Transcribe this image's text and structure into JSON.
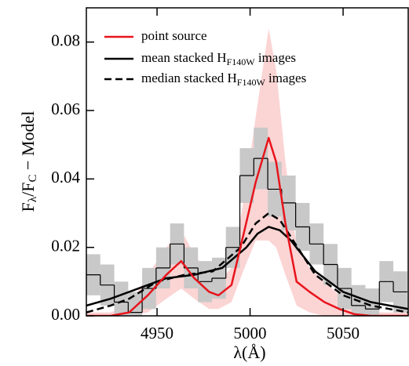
{
  "chart_data": {
    "type": "line",
    "xlim": [
      4912,
      5085
    ],
    "ylim": [
      0,
      0.09
    ],
    "xticks": [
      4950,
      5000,
      5050
    ],
    "yticks": [
      {
        "value": 0,
        "label": "0.00"
      },
      {
        "value": 0.02,
        "label": "0.02"
      },
      {
        "value": 0.04,
        "label": "0.04"
      },
      {
        "value": 0.06,
        "label": "0.06"
      },
      {
        "value": 0.08,
        "label": "0.08"
      }
    ],
    "x_label": [
      "λ(Å)"
    ],
    "y_label": [
      "F",
      "λ",
      "/F",
      "C",
      " − Model"
    ],
    "histogram": {
      "color": "#000000",
      "band_color": "#c8c8c8",
      "bins": [
        4912,
        4919.5,
        4927,
        4934.5,
        4942,
        4949.5,
        4957,
        4964.5,
        4972,
        4979.5,
        4987,
        4994.5,
        5002,
        5009.5,
        5017,
        5024.5,
        5032,
        5039.5,
        5047,
        5054.5,
        5062,
        5069.5,
        5077,
        5084.5
      ],
      "values": [
        0.012,
        0.009,
        0.004,
        0.001,
        0.008,
        0.014,
        0.021,
        0.014,
        0.01,
        0.011,
        0.02,
        0.041,
        0.046,
        0.037,
        0.033,
        0.026,
        0.021,
        0.015,
        0.008,
        0.003,
        0.002,
        0.01,
        0.007
      ],
      "errors": [
        0.006,
        0.006,
        0.006,
        0.006,
        0.006,
        0.006,
        0.006,
        0.006,
        0.006,
        0.006,
        0.006,
        0.008,
        0.009,
        0.008,
        0.008,
        0.007,
        0.006,
        0.006,
        0.006,
        0.006,
        0.006,
        0.006,
        0.006
      ]
    },
    "series": [
      {
        "name": "point source",
        "color": "#e8141c",
        "style": "solid",
        "band_color": "#f9c6c6",
        "x": [
          4912,
          4925,
          4935,
          4945,
          4955,
          4963,
          4970,
          4978,
          4983,
          4990,
          4997,
          5003,
          5010,
          5014,
          5019,
          5025,
          5032,
          5040,
          5048,
          5056,
          5065,
          5085
        ],
        "values": [
          0,
          0,
          0.001,
          0.006,
          0.012,
          0.016,
          0.011,
          0.007,
          0.006,
          0.009,
          0.025,
          0.039,
          0.052,
          0.045,
          0.027,
          0.01,
          0.007,
          0.004,
          0.002,
          0.0005,
          0,
          0
        ],
        "band_high": [
          0.001,
          0.001,
          0.003,
          0.012,
          0.02,
          0.025,
          0.018,
          0.012,
          0.01,
          0.014,
          0.035,
          0.058,
          0.084,
          0.072,
          0.045,
          0.02,
          0.014,
          0.01,
          0.006,
          0.003,
          0.001,
          0.001
        ],
        "band_low": [
          0,
          0,
          0,
          0.001,
          0.005,
          0.008,
          0.005,
          0.002,
          0.002,
          0.004,
          0.014,
          0.022,
          0.022,
          0.02,
          0.012,
          0.003,
          0.001,
          0,
          0,
          0,
          0,
          0
        ]
      },
      {
        "name": "mean stacked H",
        "name_sub": "F140W",
        "name_after": " images",
        "color": "#000000",
        "style": "solid",
        "x": [
          4912,
          4925,
          4940,
          4955,
          4970,
          4985,
          4998,
          5004,
          5010,
          5016,
          5022,
          5035,
          5050,
          5065,
          5085
        ],
        "values": [
          0.003,
          0.005,
          0.008,
          0.011,
          0.012,
          0.014,
          0.02,
          0.024,
          0.026,
          0.025,
          0.022,
          0.013,
          0.007,
          0.004,
          0.002
        ]
      },
      {
        "name": "median stacked H",
        "name_sub": "F140W",
        "name_after": " images",
        "color": "#000000",
        "style": "dashed",
        "x": [
          4912,
          4925,
          4935,
          4950,
          4965,
          4980,
          4995,
          5003,
          5010,
          5016,
          5022,
          5035,
          5050,
          5065,
          5085
        ],
        "values": [
          0.001,
          0.003,
          0.005,
          0.01,
          0.012,
          0.013,
          0.02,
          0.027,
          0.03,
          0.028,
          0.023,
          0.012,
          0.006,
          0.003,
          0.001
        ]
      }
    ]
  }
}
